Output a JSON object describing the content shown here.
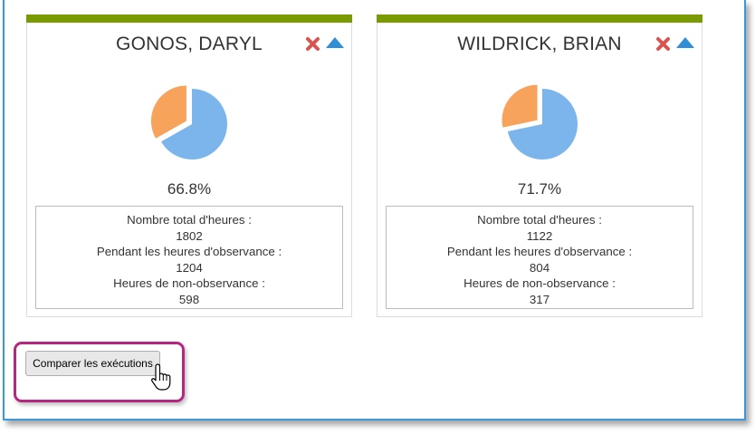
{
  "cards": [
    {
      "name": "GONOS, DARYL",
      "percent_label": "66.8%",
      "observance_fraction": 0.668,
      "stats": {
        "total_label": "Nombre total d'heures :",
        "total_value": "1802",
        "observance_label": "Pendant les heures d'observance :",
        "observance_value": "1204",
        "non_observance_label": "Heures de non-observance :",
        "non_observance_value": "598"
      }
    },
    {
      "name": "WILDRICK, BRIAN",
      "percent_label": "71.7%",
      "observance_fraction": 0.717,
      "stats": {
        "total_label": "Nombre total d'heures :",
        "total_value": "1122",
        "observance_label": "Pendant les heures d'observance :",
        "observance_value": "804",
        "non_observance_label": "Heures de non-observance :",
        "non_observance_value": "317"
      }
    }
  ],
  "compare_button_label": "Comparer les exécutions",
  "colors": {
    "card_bar": "#7a9a01",
    "pie_observance": "#7cb5ec",
    "pie_non_observance": "#f7a35c",
    "close_icon": "#d9534f",
    "collapse_icon": "#2f8fd6",
    "highlight": "#b5267f",
    "frame": "#3a9ad9"
  },
  "icons": {
    "close": "close-icon",
    "collapse": "triangle-up-icon",
    "cursor": "hand-pointer-icon"
  }
}
